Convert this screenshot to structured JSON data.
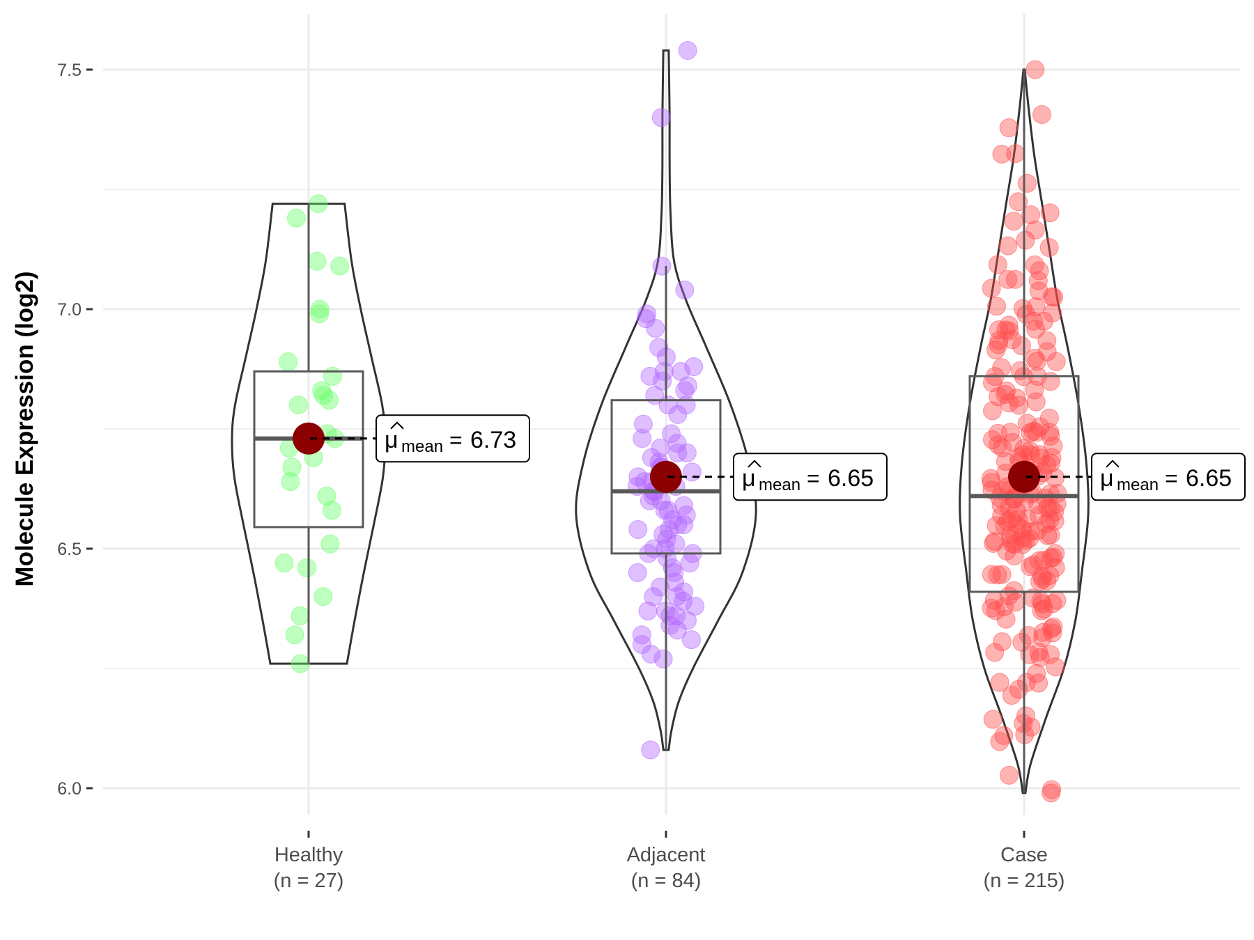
{
  "chart_data": {
    "type": "violin",
    "title": "",
    "xlabel": "",
    "ylabel": "Molecule Expression (log2)",
    "ylim": [
      5.92,
      7.57
    ],
    "yticks": [
      6.0,
      6.5,
      7.0,
      7.5
    ],
    "ytick_labels": [
      "6.0",
      "6.5",
      "7.0",
      "7.5"
    ],
    "grid": true,
    "legend": "none",
    "mean_label_prefix": "μ",
    "mean_label_subscript": "mean",
    "mean_label_equals": "=",
    "mean_color": "#8b0000",
    "groups": [
      {
        "name": "Healthy",
        "n_label": "(n = 27)",
        "n": 27,
        "color": "#66ff66",
        "mean": 6.73,
        "mean_label": "6.73",
        "median": 6.73,
        "q1": 6.545,
        "q3": 6.87,
        "whisker_low": 6.26,
        "whisker_high": 7.22,
        "violin_range": [
          6.26,
          7.22
        ],
        "density": [
          [
            6.26,
            0.5
          ],
          [
            6.35,
            0.6
          ],
          [
            6.45,
            0.72
          ],
          [
            6.55,
            0.85
          ],
          [
            6.65,
            0.97
          ],
          [
            6.73,
            1.0
          ],
          [
            6.8,
            0.96
          ],
          [
            6.9,
            0.82
          ],
          [
            7.0,
            0.68
          ],
          [
            7.1,
            0.56
          ],
          [
            7.22,
            0.47
          ]
        ],
        "points": [
          7.22,
          7.19,
          7.1,
          7.09,
          7.0,
          6.99,
          6.89,
          6.86,
          6.83,
          6.81,
          6.82,
          6.8,
          6.74,
          6.71,
          6.69,
          6.67,
          6.64,
          6.61,
          6.58,
          6.51,
          6.47,
          6.46,
          6.4,
          6.36,
          6.32,
          6.26,
          6.73
        ]
      },
      {
        "name": "Adjacent",
        "n_label": "(n = 84)",
        "n": 84,
        "color": "#b266ff",
        "mean": 6.65,
        "mean_label": "6.65",
        "median": 6.62,
        "q1": 6.49,
        "q3": 6.81,
        "whisker_low": 6.08,
        "whisker_high": 7.09,
        "violin_range": [
          6.08,
          7.54
        ],
        "density": [
          [
            6.08,
            0.03
          ],
          [
            6.12,
            0.06
          ],
          [
            6.18,
            0.14
          ],
          [
            6.25,
            0.3
          ],
          [
            6.35,
            0.58
          ],
          [
            6.45,
            0.85
          ],
          [
            6.57,
            1.0
          ],
          [
            6.68,
            0.92
          ],
          [
            6.8,
            0.72
          ],
          [
            6.92,
            0.45
          ],
          [
            7.02,
            0.22
          ],
          [
            7.1,
            0.09
          ],
          [
            7.2,
            0.05
          ],
          [
            7.3,
            0.04
          ],
          [
            7.4,
            0.04
          ],
          [
            7.54,
            0.03
          ]
        ],
        "points": [
          7.54,
          7.4,
          7.09,
          7.04,
          6.99,
          6.98,
          6.96,
          6.92,
          6.9,
          6.88,
          6.87,
          6.87,
          6.86,
          6.85,
          6.84,
          6.83,
          6.82,
          6.8,
          6.8,
          6.78,
          6.76,
          6.74,
          6.73,
          6.72,
          6.71,
          6.7,
          6.69,
          6.68,
          6.67,
          6.67,
          6.66,
          6.66,
          6.65,
          6.64,
          6.64,
          6.63,
          6.63,
          6.62,
          6.61,
          6.6,
          6.6,
          6.59,
          6.58,
          6.58,
          6.57,
          6.56,
          6.55,
          6.54,
          6.54,
          6.53,
          6.52,
          6.51,
          6.5,
          6.5,
          6.49,
          6.49,
          6.48,
          6.47,
          6.46,
          6.45,
          6.45,
          6.43,
          6.42,
          6.41,
          6.4,
          6.4,
          6.39,
          6.38,
          6.37,
          6.37,
          6.36,
          6.36,
          6.35,
          6.34,
          6.33,
          6.32,
          6.31,
          6.3,
          6.28,
          6.27,
          6.55,
          6.62,
          6.7,
          6.08
        ]
      },
      {
        "name": "Case",
        "n_label": "(n = 215)",
        "n": 215,
        "color": "#ff4d4d",
        "mean": 6.65,
        "mean_label": "6.65",
        "median": 6.61,
        "q1": 6.41,
        "q3": 6.86,
        "whisker_low": 5.99,
        "whisker_high": 7.5,
        "violin_range": [
          5.99,
          7.5
        ],
        "density": [
          [
            5.99,
            0.02
          ],
          [
            6.05,
            0.1
          ],
          [
            6.15,
            0.35
          ],
          [
            6.25,
            0.62
          ],
          [
            6.35,
            0.8
          ],
          [
            6.45,
            0.9
          ],
          [
            6.57,
            1.0
          ],
          [
            6.68,
            0.97
          ],
          [
            6.8,
            0.85
          ],
          [
            6.92,
            0.68
          ],
          [
            7.02,
            0.52
          ],
          [
            7.12,
            0.4
          ],
          [
            7.22,
            0.28
          ],
          [
            7.32,
            0.16
          ],
          [
            7.42,
            0.07
          ],
          [
            7.5,
            0.01
          ]
        ],
        "point_summary": {
          "min": 5.99,
          "max": 7.5,
          "count": 215
        }
      }
    ]
  }
}
